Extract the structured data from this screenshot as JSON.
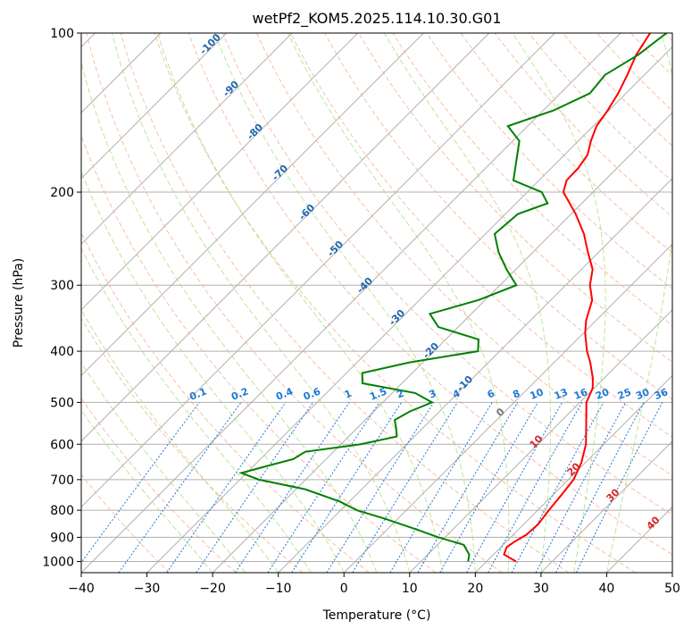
{
  "chart_data": {
    "type": "line",
    "title": "wetPf2_KOM5.2025.114.10.30.G01",
    "xlabel": "Temperature (°C)",
    "ylabel": "Pressure (hPa)",
    "xlim": [
      -40,
      50
    ],
    "ylim": [
      1050,
      100
    ],
    "y_scale": "log",
    "grid": true,
    "x_ticks": [
      -40,
      -30,
      -20,
      -10,
      0,
      10,
      20,
      30,
      40,
      50
    ],
    "x_tick_labels": [
      "−40",
      "−30",
      "−20",
      "−10",
      "0",
      "10",
      "20",
      "30",
      "40",
      "50"
    ],
    "y_ticks": [
      100,
      200,
      300,
      400,
      500,
      600,
      700,
      800,
      900,
      1000
    ],
    "y_tick_labels": [
      "100",
      "200",
      "300",
      "400",
      "500",
      "600",
      "700",
      "800",
      "900",
      "1000"
    ],
    "skew": true,
    "series": [
      {
        "color": "#ff0000",
        "points": [
          [
            1000,
            24.5
          ],
          [
            970,
            21.6
          ],
          [
            940,
            20.9
          ],
          [
            920,
            21.2
          ],
          [
            890,
            22.0
          ],
          [
            850,
            22.2
          ],
          [
            800,
            21.7
          ],
          [
            750,
            21.3
          ],
          [
            700,
            20.8
          ],
          [
            650,
            19.4
          ],
          [
            600,
            17.3
          ],
          [
            550,
            14.3
          ],
          [
            500,
            11.0
          ],
          [
            470,
            9.8
          ],
          [
            450,
            8.3
          ],
          [
            420,
            5.5
          ],
          [
            400,
            3.3
          ],
          [
            370,
            0.3
          ],
          [
            350,
            -1.5
          ],
          [
            320,
            -3.7
          ],
          [
            300,
            -6.3
          ],
          [
            280,
            -8.3
          ],
          [
            260,
            -11.6
          ],
          [
            240,
            -15.0
          ],
          [
            220,
            -19.3
          ],
          [
            200,
            -24.5
          ],
          [
            190,
            -25.8
          ],
          [
            180,
            -25.9
          ],
          [
            170,
            -26.5
          ],
          [
            160,
            -28.1
          ],
          [
            150,
            -29.5
          ],
          [
            140,
            -30.2
          ],
          [
            130,
            -31.2
          ],
          [
            120,
            -32.6
          ],
          [
            110,
            -34.3
          ],
          [
            100,
            -35.5
          ]
        ]
      },
      {
        "color": "#008000",
        "points": [
          [
            1000,
            17.2
          ],
          [
            970,
            16.3
          ],
          [
            930,
            14.0
          ],
          [
            900,
            9.0
          ],
          [
            870,
            4.5
          ],
          [
            830,
            -2.0
          ],
          [
            800,
            -7.5
          ],
          [
            770,
            -11.5
          ],
          [
            730,
            -18.6
          ],
          [
            700,
            -27.1
          ],
          [
            680,
            -30.8
          ],
          [
            660,
            -28.0
          ],
          [
            640,
            -25.0
          ],
          [
            620,
            -24.3
          ],
          [
            600,
            -17.0
          ],
          [
            580,
            -12.7
          ],
          [
            560,
            -14.0
          ],
          [
            540,
            -15.5
          ],
          [
            520,
            -14.5
          ],
          [
            500,
            -12.5
          ],
          [
            480,
            -16.5
          ],
          [
            460,
            -26.0
          ],
          [
            440,
            -27.6
          ],
          [
            420,
            -22.0
          ],
          [
            400,
            -13.3
          ],
          [
            380,
            -15.0
          ],
          [
            360,
            -23.0
          ],
          [
            340,
            -26.3
          ],
          [
            320,
            -21.0
          ],
          [
            300,
            -17.5
          ],
          [
            280,
            -21.4
          ],
          [
            260,
            -25.2
          ],
          [
            240,
            -28.6
          ],
          [
            220,
            -28.1
          ],
          [
            210,
            -25.2
          ],
          [
            200,
            -27.8
          ],
          [
            190,
            -33.9
          ],
          [
            170,
            -37.2
          ],
          [
            160,
            -39.0
          ],
          [
            150,
            -43.0
          ],
          [
            140,
            -38.4
          ],
          [
            130,
            -35.5
          ],
          [
            120,
            -36.0
          ],
          [
            110,
            -34.0
          ],
          [
            100,
            -33.0
          ]
        ]
      }
    ],
    "reference_lines": {
      "dry_adiabat_labels": [
        "-100",
        "-90",
        "-80",
        "-70",
        "-60",
        "-50",
        "-40",
        "-30",
        "-20",
        "-10",
        "0",
        "10",
        "20",
        "30",
        "40"
      ],
      "mixing_ratio_labels": [
        "0.1",
        "0.2",
        "0.4",
        "0.6",
        "1",
        "1.5",
        "2",
        "3",
        "4",
        "6",
        "8",
        "10",
        "13",
        "16",
        "20",
        "25",
        "30",
        "36"
      ],
      "colors": {
        "grid": "#b0b0b0",
        "dry_adiabat": "#f4a582",
        "moist_adiabat": "#a6d96a",
        "mixing_ratio": "#1f78d4",
        "label_blue": "#2166ac",
        "label_red": "#d62728"
      }
    }
  }
}
